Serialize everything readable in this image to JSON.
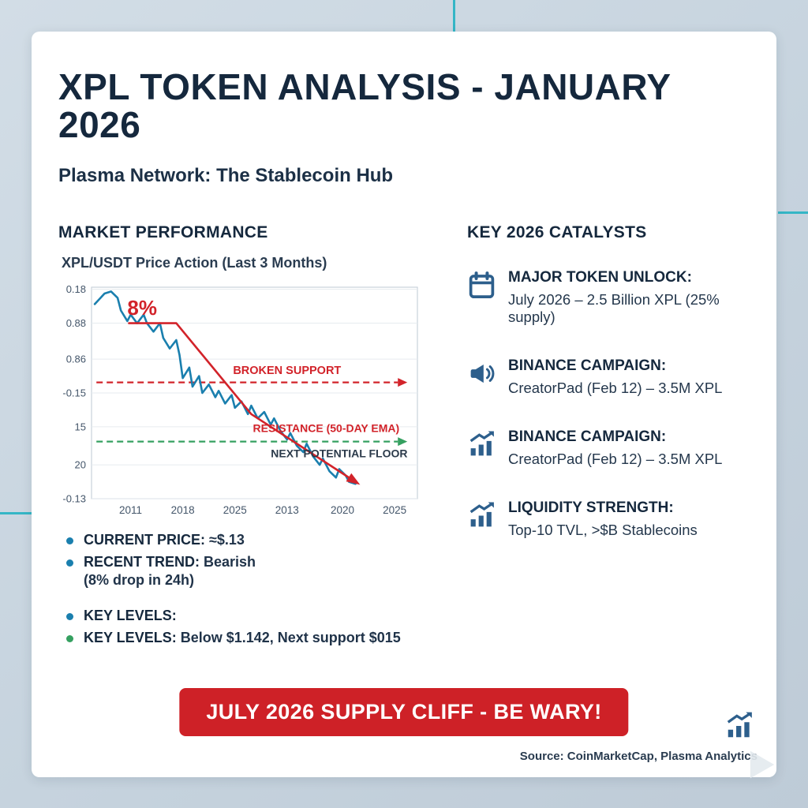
{
  "title": "XPL TOKEN ANALYSIS - JANUARY 2026",
  "subtitle": "Plasma Network: The Stablecoin Hub",
  "colors": {
    "accent_teal": "#35b6c6",
    "navy_text": "#15283d",
    "price_line_blue": "#1a7fae",
    "trend_red": "#d2232a",
    "support_green": "#35a060",
    "icon_blue": "#2d5f8c",
    "banner_red": "#ce2127",
    "card_bg": "#ffffff",
    "page_bg": "#c6d3de"
  },
  "left": {
    "heading": "MARKET PERFORMANCE",
    "chart_caption": "XPL/USDT Price Action (Last 3 Months)",
    "bullets": [
      {
        "dot": "#1a7fae",
        "label": "CURRENT PRICE:",
        "text": " ≈$.13"
      },
      {
        "dot": "#1a7fae",
        "label": "RECENT TREND:",
        "text": " Bearish",
        "line2": "(8% drop in 24h)"
      },
      {
        "dot": "#1a7fae",
        "label": "KEY LEVELS:",
        "text": ""
      },
      {
        "dot": "#35a060",
        "label": "KEY LEVELS:",
        "text": " Below $1.142, Next support $015"
      }
    ]
  },
  "right": {
    "heading": "KEY 2026 CATALYSTS",
    "items": [
      {
        "icon": "calendar-icon",
        "title": "MAJOR TOKEN UNLOCK:",
        "body": "July 2026 – 2.5 Billion XPL (25% supply)"
      },
      {
        "icon": "megaphone-icon",
        "title": "BINANCE CAMPAIGN:",
        "body": "CreatorPad (Feb 12) – 3.5M XPL"
      },
      {
        "icon": "bar-chart-up-icon",
        "title": "BINANCE CAMPAIGN:",
        "body": "CreatorPad (Feb 12) – 3.5M XPL"
      },
      {
        "icon": "bar-chart-up-icon",
        "title": "LIQUIDITY STRENGTH:",
        "body": "Top-10 TVL, >$B Stablecoins"
      }
    ]
  },
  "banner": "JULY 2026 SUPPLY CLIFF - BE WARY!",
  "footer": {
    "icon": "bar-chart-up-icon",
    "source": "Source: CoinMarketCap, Plasma Analytics"
  },
  "chart_data": {
    "type": "line",
    "title": "XPL/USDT Price Action (Last 3 Months)",
    "plot_bg": "#ffffff",
    "border_color": "#c9d2da",
    "grid_color": "#e6ebef",
    "grid": true,
    "legend": "none",
    "y_ticks": [
      {
        "label": "0.18",
        "pos": 1
      },
      {
        "label": "0.88",
        "pos": 17
      },
      {
        "label": "0.86",
        "pos": 34
      },
      {
        "label": "-0.15",
        "pos": 50
      },
      {
        "label": "15",
        "pos": 66
      },
      {
        "label": "20",
        "pos": 84
      },
      {
        "label": "-0.13",
        "pos": 100
      }
    ],
    "x_ticks": [
      {
        "label": "2011",
        "pos": 12
      },
      {
        "label": "2018",
        "pos": 28
      },
      {
        "label": "2025",
        "pos": 44
      },
      {
        "label": "2013",
        "pos": 60
      },
      {
        "label": "2020",
        "pos": 77
      },
      {
        "label": "2025",
        "pos": 93
      }
    ],
    "series": [
      {
        "name": "XPL/USDT price",
        "color": "#1a7fae",
        "width": 2.6,
        "arrow": false,
        "points": [
          [
            1,
            8
          ],
          [
            4,
            3
          ],
          [
            6,
            2
          ],
          [
            8,
            5
          ],
          [
            9,
            11
          ],
          [
            11,
            16
          ],
          [
            12,
            13
          ],
          [
            14,
            17
          ],
          [
            16,
            13
          ],
          [
            17,
            17
          ],
          [
            19,
            21
          ],
          [
            21,
            17
          ],
          [
            22,
            24
          ],
          [
            24,
            29
          ],
          [
            26,
            25
          ],
          [
            27,
            32
          ],
          [
            28,
            43
          ],
          [
            30,
            38
          ],
          [
            31,
            47
          ],
          [
            33,
            42
          ],
          [
            34,
            50
          ],
          [
            36,
            46
          ],
          [
            38,
            52
          ],
          [
            39,
            49
          ],
          [
            41,
            55
          ],
          [
            43,
            51
          ],
          [
            44,
            57
          ],
          [
            46,
            54
          ],
          [
            48,
            60
          ],
          [
            49,
            56
          ],
          [
            51,
            62
          ],
          [
            53,
            59
          ],
          [
            55,
            65
          ],
          [
            56,
            62
          ],
          [
            58,
            68
          ],
          [
            60,
            72
          ],
          [
            61,
            69
          ],
          [
            63,
            75
          ],
          [
            65,
            78
          ],
          [
            66,
            74
          ],
          [
            68,
            80
          ],
          [
            70,
            84
          ],
          [
            71,
            81
          ],
          [
            73,
            87
          ],
          [
            75,
            90
          ],
          [
            76,
            86
          ],
          [
            78,
            89
          ],
          [
            79,
            92
          ],
          [
            81,
            93
          ]
        ]
      },
      {
        "name": "downtrend line",
        "color": "#d2232a",
        "width": 2.6,
        "arrow": true,
        "points": [
          [
            11.5,
            17
          ],
          [
            26,
            17
          ],
          [
            49,
            60
          ],
          [
            81,
            92
          ]
        ]
      }
    ],
    "hlines": [
      {
        "name": "broken support",
        "y": 45,
        "color": "#d2232a",
        "style": "dashed"
      },
      {
        "name": "next floor / 50-day EMA",
        "y": 73,
        "color": "#35a060",
        "style": "dashed"
      }
    ],
    "labels": [
      {
        "text": "8%",
        "x": 11,
        "y": 13,
        "color": "#d2232a",
        "size": 26,
        "weight": 800,
        "anchor": "start"
      },
      {
        "text": "BROKEN SUPPORT",
        "x": 60,
        "y": 41,
        "color": "#d2232a",
        "size": 14.5,
        "weight": 800,
        "anchor": "middle"
      },
      {
        "text": "RESISTANCE (50-DAY EMA)",
        "x": 72,
        "y": 68.5,
        "color": "#d2232a",
        "size": 14,
        "weight": 800,
        "anchor": "middle"
      },
      {
        "text": "NEXT POTENTIAL FLOOR",
        "x": 76,
        "y": 80.5,
        "color": "#2b3a4a",
        "size": 14,
        "weight": 800,
        "anchor": "middle"
      }
    ]
  }
}
